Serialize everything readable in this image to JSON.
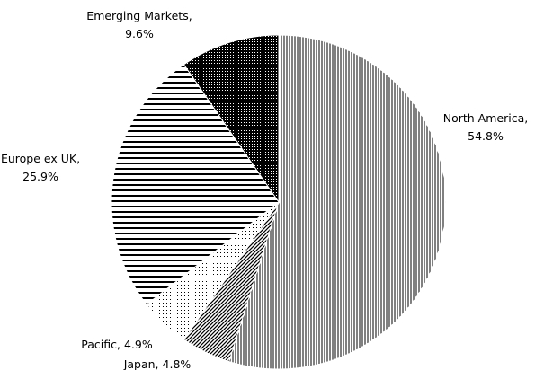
{
  "chart_data": {
    "type": "pie",
    "categories": [
      "North America,",
      "Japan,",
      "Pacific,",
      "Europe ex UK,",
      "Emerging Markets,"
    ],
    "values": [
      54.8,
      4.8,
      4.9,
      25.9,
      9.6
    ],
    "value_labels": [
      "54.8%",
      "4.8%",
      "4.9%",
      "25.9%",
      "9.6%"
    ],
    "patterns": [
      "vertical",
      "diagonal",
      "dots",
      "horizontal",
      "dense"
    ]
  }
}
